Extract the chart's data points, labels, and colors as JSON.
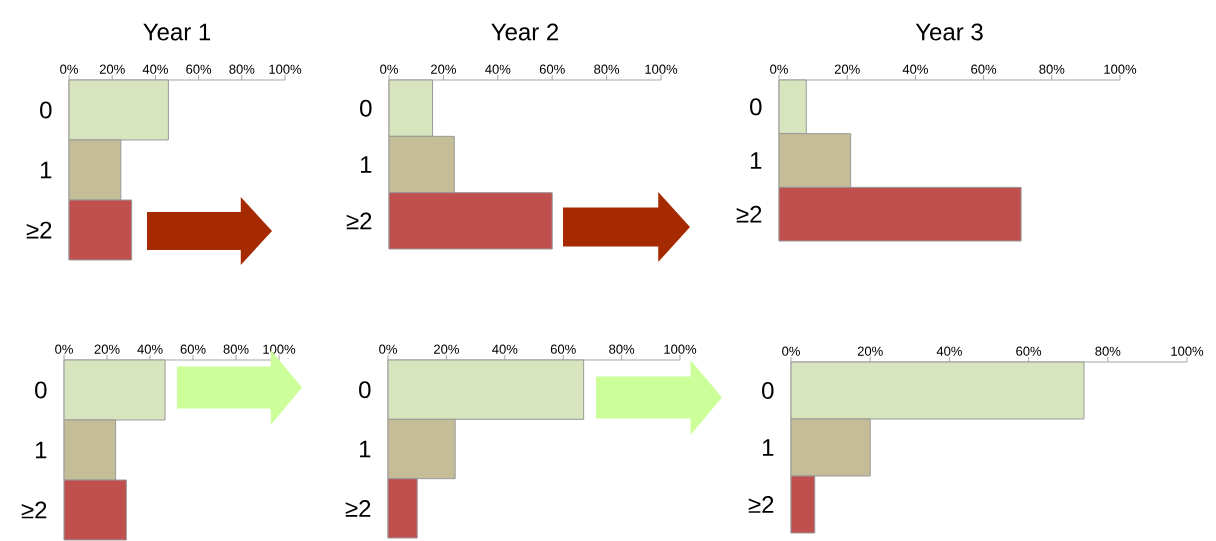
{
  "chart_data": [
    {
      "type": "bar",
      "orientation": "horizontal",
      "title": "Year 1",
      "categories": [
        "0",
        "1",
        "≥2"
      ],
      "values": [
        46,
        24,
        29
      ],
      "colors": [
        "#d7e4bd",
        "#c4bd97",
        "#c0504d"
      ],
      "xlim": [
        0,
        100
      ],
      "xticks": [
        {
          "value": 0,
          "label": "0%"
        },
        {
          "value": 20,
          "label": "20%"
        },
        {
          "value": 40,
          "label": "40%"
        },
        {
          "value": 60,
          "label": "60%"
        },
        {
          "value": 80,
          "label": "80%"
        },
        {
          "value": 100,
          "label": "100%"
        }
      ]
    },
    {
      "type": "bar",
      "orientation": "horizontal",
      "title": "Year 2",
      "categories": [
        "0",
        "1",
        "≥2"
      ],
      "values": [
        16,
        24,
        60
      ],
      "colors": [
        "#d7e4bd",
        "#c4bd97",
        "#c0504d"
      ],
      "xlim": [
        0,
        100
      ],
      "xticks": [
        {
          "value": 0,
          "label": "0%"
        },
        {
          "value": 20,
          "label": "20%"
        },
        {
          "value": 40,
          "label": "40%"
        },
        {
          "value": 60,
          "label": "60%"
        },
        {
          "value": 80,
          "label": "80%"
        },
        {
          "value": 100,
          "label": "100%"
        }
      ]
    },
    {
      "type": "bar",
      "orientation": "horizontal",
      "title": "Year 3",
      "categories": [
        "0",
        "1",
        "≥2"
      ],
      "values": [
        8,
        21,
        71
      ],
      "colors": [
        "#d7e4bd",
        "#c4bd97",
        "#c0504d"
      ],
      "xlim": [
        0,
        100
      ],
      "xticks": [
        {
          "value": 0,
          "label": "0%"
        },
        {
          "value": 20,
          "label": "20%"
        },
        {
          "value": 40,
          "label": "40%"
        },
        {
          "value": 60,
          "label": "60%"
        },
        {
          "value": 80,
          "label": "80%"
        },
        {
          "value": 100,
          "label": "100%"
        }
      ]
    },
    {
      "type": "bar",
      "orientation": "horizontal",
      "categories": [
        "0",
        "1",
        "≥2"
      ],
      "values": [
        47,
        24,
        29
      ],
      "colors": [
        "#d7e4bd",
        "#c4bd97",
        "#c0504d"
      ],
      "xlim": [
        0,
        100
      ],
      "xticks": [
        {
          "value": 0,
          "label": "0%"
        },
        {
          "value": 20,
          "label": "20%"
        },
        {
          "value": 40,
          "label": "40%"
        },
        {
          "value": 60,
          "label": "60%"
        },
        {
          "value": 80,
          "label": "80%"
        },
        {
          "value": 100,
          "label": "100%"
        }
      ]
    },
    {
      "type": "bar",
      "orientation": "horizontal",
      "categories": [
        "0",
        "1",
        "≥2"
      ],
      "values": [
        67,
        23,
        10
      ],
      "colors": [
        "#d7e4bd",
        "#c4bd97",
        "#c0504d"
      ],
      "xlim": [
        0,
        100
      ],
      "xticks": [
        {
          "value": 0,
          "label": "0%"
        },
        {
          "value": 20,
          "label": "20%"
        },
        {
          "value": 40,
          "label": "40%"
        },
        {
          "value": 60,
          "label": "60%"
        },
        {
          "value": 80,
          "label": "80%"
        },
        {
          "value": 100,
          "label": "100%"
        }
      ]
    },
    {
      "type": "bar",
      "orientation": "horizontal",
      "categories": [
        "0",
        "1",
        "≥2"
      ],
      "values": [
        74,
        20,
        6
      ],
      "colors": [
        "#d7e4bd",
        "#c4bd97",
        "#c0504d"
      ],
      "xlim": [
        0,
        100
      ],
      "xticks": [
        {
          "value": 0,
          "label": "0%"
        },
        {
          "value": 20,
          "label": "20%"
        },
        {
          "value": 40,
          "label": "40%"
        },
        {
          "value": 60,
          "label": "60%"
        },
        {
          "value": 80,
          "label": "80%"
        },
        {
          "value": 100,
          "label": "100%"
        }
      ]
    }
  ]
}
